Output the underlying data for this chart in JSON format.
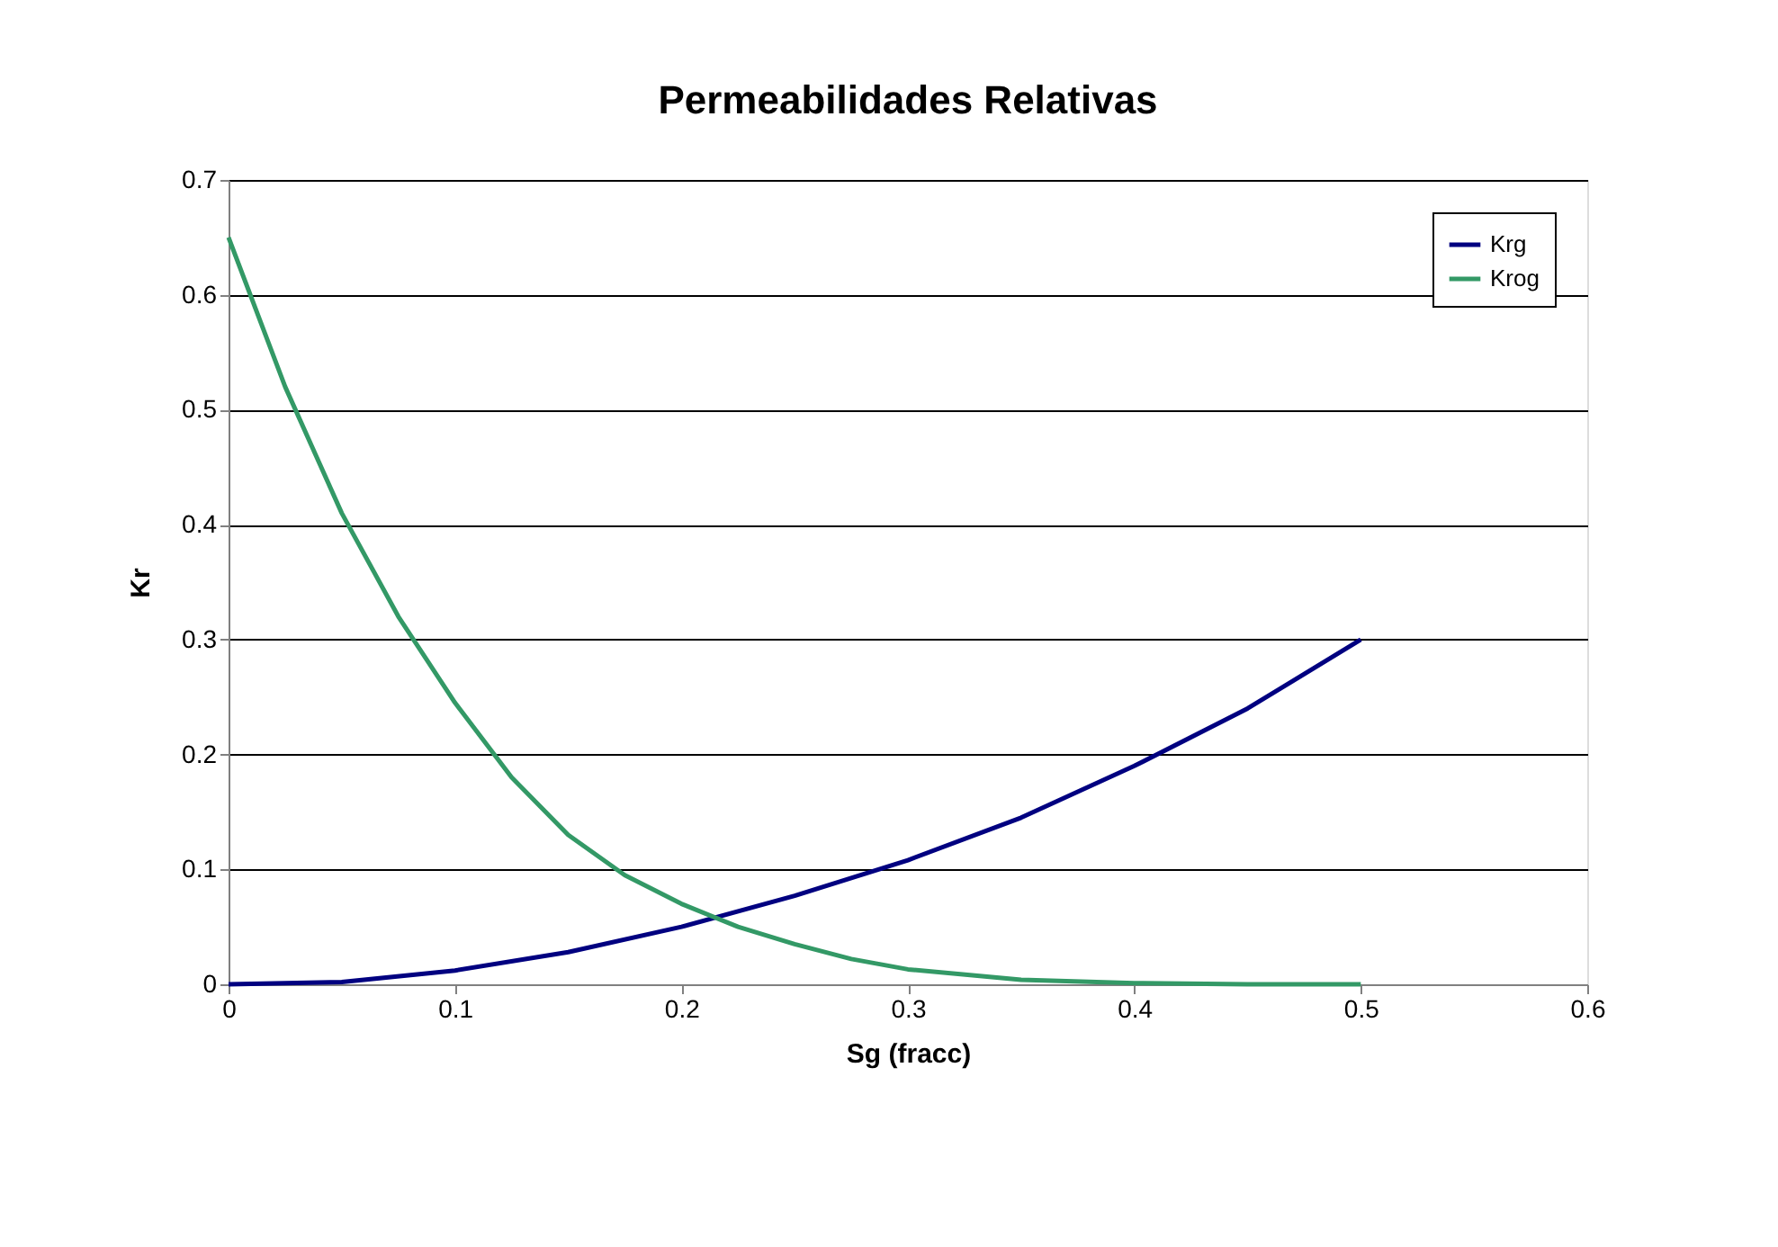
{
  "chart_data": {
    "type": "line",
    "title": "Permeabilidades Relativas",
    "xlabel": "Sg (fracc)",
    "ylabel": "Kr",
    "xlim": [
      0,
      0.6
    ],
    "xticks": [
      0,
      0.1,
      0.2,
      0.3,
      0.4,
      0.5,
      0.6
    ],
    "ylim": [
      0,
      0.7
    ],
    "yticks": [
      0,
      0.1,
      0.2,
      0.3,
      0.4,
      0.5,
      0.6,
      0.7
    ],
    "grid": "y",
    "legend": "top right",
    "marker": "none",
    "line_style": "solid",
    "series": [
      {
        "name": "Krg",
        "color": "#000080",
        "x": [
          0,
          0.05,
          0.1,
          0.15,
          0.2,
          0.25,
          0.3,
          0.35,
          0.4,
          0.45,
          0.5
        ],
        "values": [
          0,
          0.002,
          0.012,
          0.028,
          0.05,
          0.077,
          0.108,
          0.145,
          0.19,
          0.24,
          0.3
        ]
      },
      {
        "name": "Krog",
        "color": "#339966",
        "x": [
          0,
          0.025,
          0.05,
          0.075,
          0.1,
          0.125,
          0.15,
          0.175,
          0.2,
          0.225,
          0.25,
          0.275,
          0.3,
          0.35,
          0.4,
          0.45,
          0.5
        ],
        "values": [
          0.65,
          0.52,
          0.41,
          0.32,
          0.245,
          0.18,
          0.13,
          0.095,
          0.07,
          0.05,
          0.035,
          0.022,
          0.013,
          0.004,
          0.001,
          0,
          0
        ]
      }
    ]
  }
}
